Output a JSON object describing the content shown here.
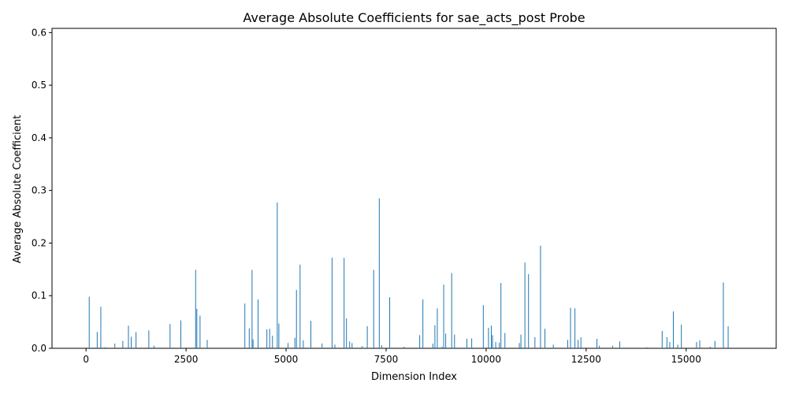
{
  "chart_data": {
    "type": "bar",
    "title": "Average Absolute Coefficients for sae_acts_post Probe",
    "xlabel": "Dimension Index",
    "ylabel": "Average Absolute Coefficient",
    "xlim": [
      -850,
      17250
    ],
    "ylim": [
      0,
      0.608
    ],
    "xticks": [
      0,
      2500,
      5000,
      7500,
      10000,
      12500,
      15000
    ],
    "yticks": [
      0.0,
      0.1,
      0.2,
      0.3,
      0.4,
      0.5,
      0.6
    ],
    "xtick_labels": [
      "0",
      "2500",
      "5000",
      "7500",
      "10000",
      "12500",
      "15000"
    ],
    "ytick_labels": [
      "0.0",
      "0.1",
      "0.2",
      "0.3",
      "0.4",
      "0.5",
      "0.6"
    ],
    "grid": false,
    "bar_color": "#1f77b4",
    "x": [
      80,
      280,
      370,
      480,
      720,
      920,
      1060,
      1130,
      1250,
      1570,
      1700,
      2100,
      2370,
      2740,
      2770,
      2850,
      3030,
      3970,
      4080,
      4150,
      4175,
      4300,
      4520,
      4590,
      4660,
      4780,
      4820,
      5050,
      5220,
      5260,
      5350,
      5430,
      5620,
      5900,
      6150,
      6220,
      6450,
      6510,
      6590,
      6650,
      6900,
      7030,
      7190,
      7330,
      7390,
      7590,
      7950,
      8340,
      8420,
      8670,
      8720,
      8780,
      8900,
      8940,
      8990,
      9140,
      9210,
      9520,
      9640,
      9930,
      10060,
      10130,
      10160,
      10240,
      10330,
      10370,
      10470,
      10830,
      10870,
      10970,
      11060,
      11220,
      11360,
      11470,
      11680,
      12040,
      12110,
      12220,
      12300,
      12370,
      12770,
      12830,
      13160,
      13340,
      14020,
      14400,
      14520,
      14590,
      14680,
      14790,
      14880,
      15260,
      15340,
      15600,
      15720,
      15930,
      16050
    ],
    "values": [
      0.098,
      0.031,
      0.079,
      0.002,
      0.009,
      0.014,
      0.043,
      0.022,
      0.031,
      0.034,
      0.005,
      0.046,
      0.053,
      0.149,
      0.075,
      0.062,
      0.016,
      0.085,
      0.038,
      0.149,
      0.017,
      0.093,
      0.036,
      0.037,
      0.024,
      0.277,
      0.047,
      0.01,
      0.02,
      0.111,
      0.159,
      0.015,
      0.052,
      0.009,
      0.172,
      0.007,
      0.172,
      0.057,
      0.013,
      0.01,
      0.004,
      0.042,
      0.149,
      0.285,
      0.006,
      0.097,
      0.003,
      0.025,
      0.093,
      0.009,
      0.044,
      0.076,
      0.003,
      0.121,
      0.028,
      0.143,
      0.026,
      0.018,
      0.019,
      0.082,
      0.039,
      0.043,
      0.025,
      0.012,
      0.011,
      0.124,
      0.029,
      0.01,
      0.026,
      0.163,
      0.141,
      0.021,
      0.195,
      0.037,
      0.007,
      0.016,
      0.077,
      0.076,
      0.016,
      0.021,
      0.018,
      0.005,
      0.005,
      0.013,
      0.002,
      0.033,
      0.021,
      0.012,
      0.07,
      0.007,
      0.045,
      0.012,
      0.015,
      0.003,
      0.014,
      0.125,
      0.042
    ]
  }
}
